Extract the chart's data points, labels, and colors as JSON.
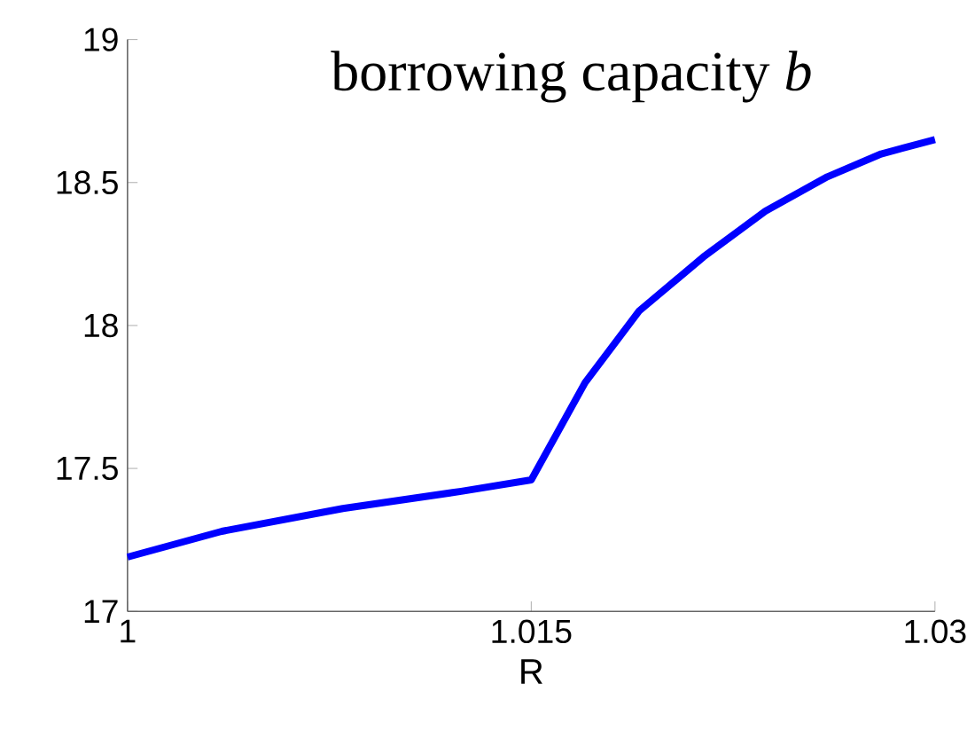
{
  "chart_data": {
    "type": "line",
    "title": "borrowing capacity *b*",
    "xlabel": "R",
    "x": [
      1,
      1.0035,
      1.008,
      1.0124,
      1.015,
      1.017,
      1.019,
      1.0214,
      1.0237,
      1.026,
      1.028,
      1.03
    ],
    "series": [
      {
        "color": "#0000ff",
        "values": [
          17.19,
          17.28,
          17.36,
          17.42,
          17.46,
          17.8,
          18.05,
          18.24,
          18.4,
          18.52,
          18.6,
          18.65
        ]
      }
    ],
    "xlim": [
      1,
      1.03
    ],
    "xticks": [
      1,
      1.015,
      1.03
    ],
    "ylim": [
      17,
      19
    ],
    "yticks": [
      17,
      17.5,
      18,
      18.5,
      19
    ],
    "grid": false,
    "legend": false,
    "marker": "none",
    "line_style": "solid"
  }
}
